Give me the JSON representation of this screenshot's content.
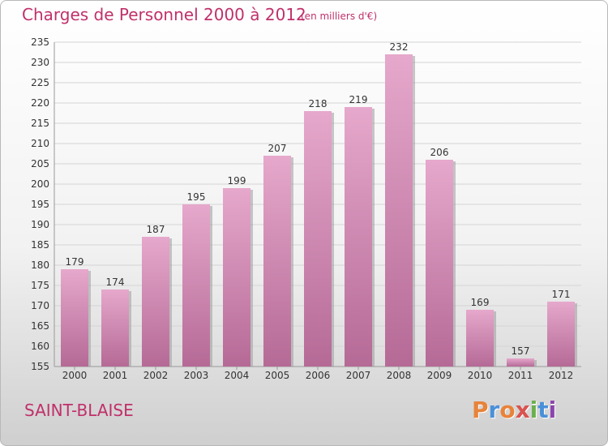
{
  "header": {
    "title": "Charges de Personnel 2000 à 2012",
    "subtitle": "(en milliers d'€)"
  },
  "footer": {
    "city": "SAINT-BLAISE",
    "logo_letters": [
      "P",
      "r",
      "o",
      "x",
      "i",
      "t",
      "i"
    ],
    "logo_colors": [
      "#e8833a",
      "#4a90d9",
      "#e8833a",
      "#d9534f",
      "#6ab04c",
      "#4a90d9",
      "#8e44ad"
    ]
  },
  "colors": {
    "bar_top": "#e6a8cc",
    "bar_bottom": "#b56a96",
    "bar_shadow": "#9a9a9a",
    "grid": "#d4d4d4"
  },
  "chart_data": {
    "type": "bar",
    "categories": [
      "2000",
      "2001",
      "2002",
      "2003",
      "2004",
      "2005",
      "2006",
      "2007",
      "2008",
      "2009",
      "2010",
      "2011",
      "2012"
    ],
    "values": [
      179,
      174,
      187,
      195,
      199,
      207,
      218,
      219,
      232,
      206,
      169,
      157,
      171
    ],
    "title": "Charges de Personnel 2000 à 2012",
    "ylim": [
      155,
      235
    ],
    "ytick_step": 5,
    "yticks": [
      "155",
      "160",
      "165",
      "170",
      "175",
      "180",
      "185",
      "190",
      "195",
      "200",
      "205",
      "210",
      "215",
      "220",
      "225",
      "230",
      "235"
    ],
    "grid": true,
    "legend": "none"
  }
}
